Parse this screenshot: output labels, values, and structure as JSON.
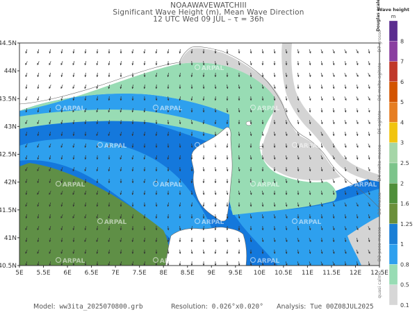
{
  "header": {
    "line1": "NOAAWAVEWATCHIII",
    "line2": "Significant Wave Height (m), Mean Wave Direction",
    "line3": "12 UTC Wed 09 JUL  –  τ = 36h"
  },
  "map": {
    "region": "Ligurian Sea / Corsica",
    "x_ticks": [
      "5E",
      "5.5E",
      "6E",
      "6.5E",
      "7E",
      "7.5E",
      "8E",
      "8.5E",
      "9E",
      "9.5E",
      "10E",
      "10.5E",
      "11E",
      "11.5E",
      "12E",
      "12.5E"
    ],
    "y_ticks": [
      "44.5N",
      "44N",
      "43.5N",
      "43N",
      "42.5N",
      "42N",
      "41.5N",
      "41N",
      "40.5N"
    ],
    "watermark": "ARPAL",
    "colors": {
      "land": "#ffffff",
      "calm_sea": "#d0d0d0",
      "band_0_1": "#d7d7d7",
      "band_0_5": "#98dcb4",
      "band_0_8": "#2ea0ee",
      "band_1_25": "#1478dc",
      "band_1_6": "#5f8f46",
      "arrow": "#333333"
    }
  },
  "colorbar": {
    "title_height": "Wave height",
    "unit": "m",
    "title_scale": "Douglas scale",
    "levels": [
      "8",
      "7",
      "6",
      "5",
      "4",
      "3",
      "2.5",
      "2",
      "1.6",
      "1.25",
      "1",
      "0.8",
      "0.5",
      "0.1"
    ],
    "douglas": [
      {
        "code": "D7",
        "name": "grosso"
      },
      {
        "code": "D6",
        "name": "molto agitato"
      },
      {
        "code": "D5",
        "name": "agitato"
      },
      {
        "code": "D4",
        "name": "molto mosso"
      },
      {
        "code": "D3",
        "name": "mosso"
      },
      {
        "code": "D2",
        "name": "poco mosso"
      },
      {
        "code": "",
        "name": "quasi calmo"
      }
    ]
  },
  "footer": {
    "model_label": "Model:",
    "model_value": "ww3ita_2025070800.grb",
    "resolution_label": "Resolution:",
    "resolution_value": "0.026°x0.020°",
    "analysis_label": "Analysis:",
    "analysis_value": "Tue 00Z08JUL2025"
  }
}
